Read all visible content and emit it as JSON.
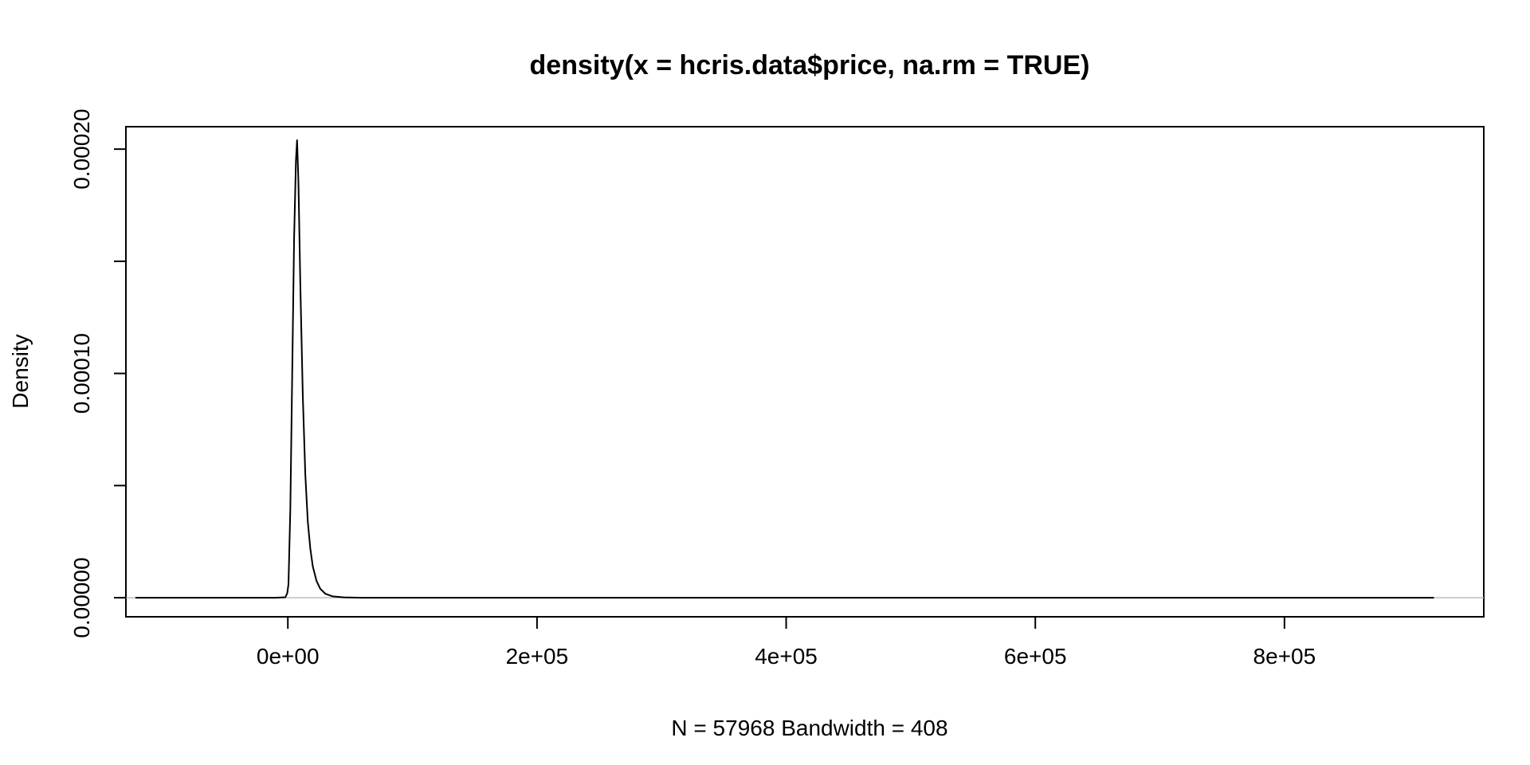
{
  "chart_data": {
    "type": "line",
    "title": "density(x = hcris.data$price, na.rm = TRUE)",
    "xlabel": "N = 57968   Bandwidth = 408",
    "ylabel": "Density",
    "xlim": [
      -130000,
      960000
    ],
    "ylim": [
      -8.5e-06,
      0.00021
    ],
    "x_ticks": [
      0,
      200000,
      400000,
      600000,
      800000
    ],
    "x_tick_labels": [
      "0e+00",
      "2e+05",
      "4e+05",
      "6e+05",
      "8e+05"
    ],
    "y_ticks": [
      0,
      5e-05,
      0.0001,
      0.00015,
      0.0002
    ],
    "y_tick_labels": [
      "0.00000",
      "",
      "0.00010",
      "",
      "0.00020"
    ],
    "zero_line": true,
    "grid": false,
    "series": [
      {
        "color": "#000000",
        "x": [
          -122400,
          -10000,
          -2000,
          -500,
          500,
          2000,
          3500,
          5000,
          6500,
          7400,
          8500,
          10000,
          12000,
          14000,
          16000,
          18000,
          20000,
          23000,
          26000,
          30000,
          36000,
          45000,
          60000,
          120000,
          300000,
          600000,
          920000
        ],
        "y": [
          0,
          0,
          2e-07,
          2e-06,
          6e-06,
          4e-05,
          0.0001,
          0.00016,
          0.000195,
          0.000204,
          0.000185,
          0.00014,
          9e-05,
          5.5e-05,
          3.4e-05,
          2.2e-05,
          1.4e-05,
          7.5e-06,
          4e-06,
          1.8e-06,
          6e-07,
          1.5e-07,
          0,
          0,
          0,
          0,
          0
        ]
      }
    ]
  }
}
